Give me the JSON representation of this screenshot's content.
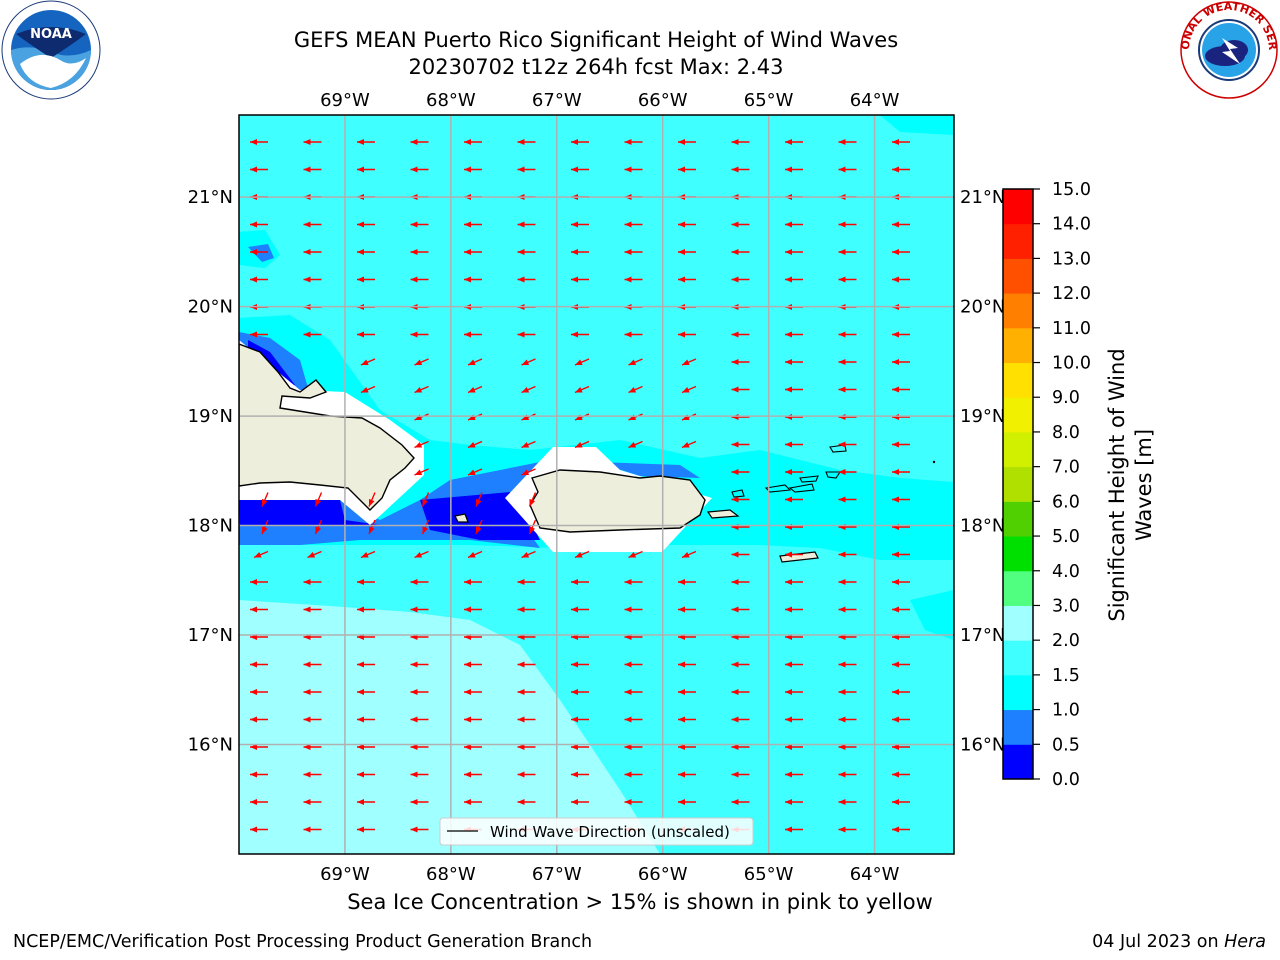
{
  "title_line1": "GEFS MEAN Puerto Rico Significant Height of Wind Waves",
  "title_line2": "20230702 t12z 264h fcst   Max: 2.43",
  "footer_left": "NCEP/EMC/Verification Post Processing Product Generation Branch",
  "footer_right_date": "04 Jul 2023 on ",
  "footer_right_machine": "Hera",
  "sea_ice_note": "Sea Ice Concentration > 15% is shown in pink to yellow",
  "legend_label": "Wind Wave Direction (unscaled)",
  "logos": {
    "noaa": "NOAA",
    "nws": "NATIONAL WEATHER SERVICE"
  },
  "map": {
    "lon_ticks": [
      "69°W",
      "68°W",
      "67°W",
      "66°W",
      "65°W",
      "64°W"
    ],
    "lat_ticks": [
      "21°N",
      "20°N",
      "19°N",
      "18°N",
      "17°N",
      "16°N"
    ],
    "lon_range": [
      -70.0,
      -63.25
    ],
    "lat_range": [
      15.0,
      21.75
    ],
    "arrow_color": "#ff0000",
    "dominant_direction": "westward"
  },
  "colorbar": {
    "label": "Significant Height of Wind Waves [m]",
    "label_line1": "Significant Height of Wind",
    "label_line2": "Waves [m]",
    "tick_labels": [
      "0.0",
      "0.5",
      "1.0",
      "1.5",
      "2.0",
      "3.0",
      "4.0",
      "5.0",
      "6.0",
      "7.0",
      "8.0",
      "9.0",
      "10.0",
      "11.0",
      "12.0",
      "13.0",
      "14.0",
      "15.0"
    ],
    "colors": [
      "#0000ff",
      "#1e7fff",
      "#00ffff",
      "#40ffff",
      "#a0ffff",
      "#50ff80",
      "#00e000",
      "#50d000",
      "#b0e000",
      "#d0f000",
      "#f0f000",
      "#ffe000",
      "#ffb000",
      "#ff8000",
      "#ff5000",
      "#ff2000",
      "#ff0000"
    ]
  }
}
